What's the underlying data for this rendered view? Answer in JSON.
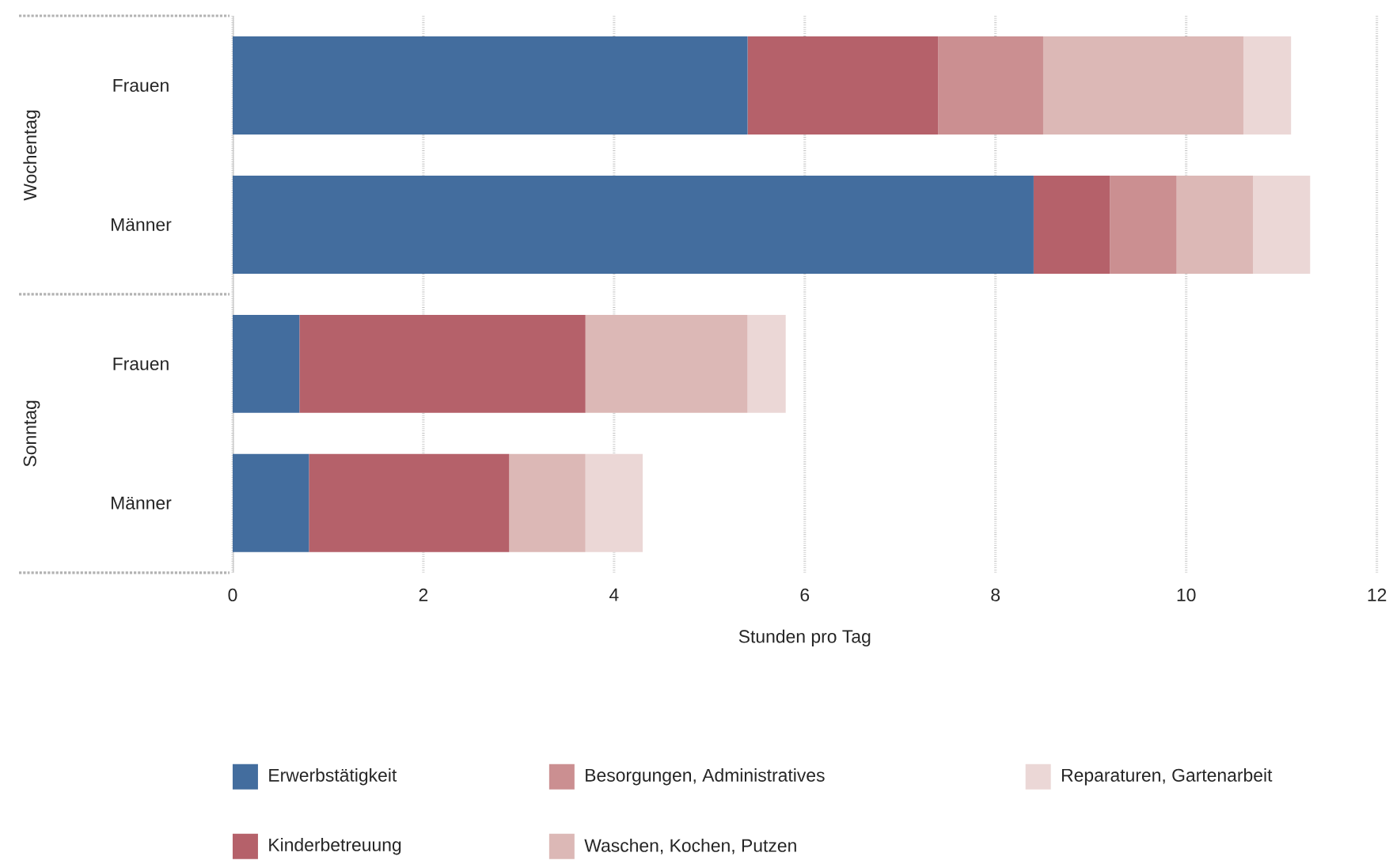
{
  "chart_data": {
    "type": "bar",
    "orientation": "horizontal",
    "stacked": true,
    "categories": [
      "Frauen",
      "Männer",
      "Frauen",
      "Männer"
    ],
    "xlabel": "Stunden pro Tag",
    "xlim": [
      0,
      12
    ],
    "xticks": [
      0,
      2,
      4,
      6,
      8,
      10,
      12
    ],
    "grid": "x",
    "legend": "bottom",
    "annotations": [
      "Wochentag",
      "Sonntag"
    ],
    "series": [
      {
        "name": "Erwerbstätigkeit",
        "color": "#436d9e",
        "values": [
          5.4,
          8.4,
          0.7,
          0.8
        ]
      },
      {
        "name": "Kinderbetreuung",
        "color": "#b5616a",
        "values": [
          2.0,
          0.8,
          3.0,
          2.1
        ]
      },
      {
        "name": "Besorgungen, Administratives",
        "color": "#cb8f91",
        "values": [
          1.1,
          0.7,
          0,
          0
        ]
      },
      {
        "name": "Waschen, Kochen, Putzen",
        "color": "#dcb8b6",
        "values": [
          2.1,
          0.8,
          1.7,
          0.8
        ]
      },
      {
        "name": "Reparaturen, Gartenarbeit",
        "color": "#ebd7d6",
        "values": [
          0.5,
          0.6,
          0.4,
          0.6
        ]
      }
    ]
  }
}
